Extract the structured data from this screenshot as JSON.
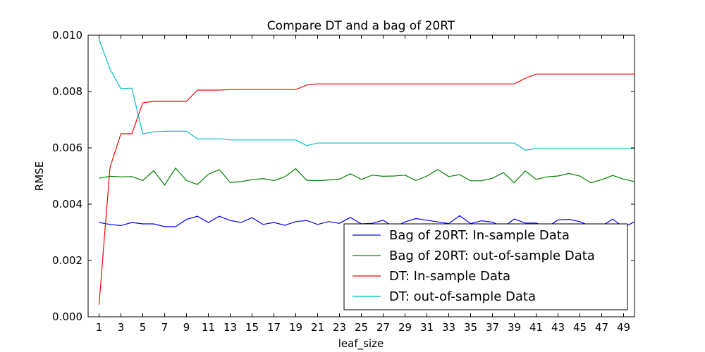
{
  "chart_data": {
    "type": "line",
    "title": "Compare DT and a bag of 20RT",
    "xlabel": "leaf_size",
    "ylabel": "RMSE",
    "xlim": [
      0,
      50
    ],
    "ylim": [
      0.0,
      0.01
    ],
    "x_ticks": [
      1,
      3,
      5,
      7,
      9,
      11,
      13,
      15,
      17,
      19,
      21,
      23,
      25,
      27,
      29,
      31,
      33,
      35,
      37,
      39,
      41,
      43,
      45,
      47,
      49
    ],
    "y_ticks": [
      "0.000",
      "0.002",
      "0.004",
      "0.006",
      "0.008",
      "0.010"
    ],
    "grid": false,
    "legend_position": "lower-right",
    "x": [
      1,
      2,
      3,
      4,
      5,
      6,
      7,
      8,
      9,
      10,
      11,
      12,
      13,
      14,
      15,
      16,
      17,
      18,
      19,
      20,
      21,
      22,
      23,
      24,
      25,
      26,
      27,
      28,
      29,
      30,
      31,
      32,
      33,
      34,
      35,
      36,
      37,
      38,
      39,
      40,
      41,
      42,
      43,
      44,
      45,
      46,
      47,
      48,
      49,
      50
    ],
    "series": [
      {
        "name": "Bag of 20RT: In-sample Data",
        "color": "#0000ff",
        "values": [
          0.00335,
          0.00328,
          0.00324,
          0.00335,
          0.0033,
          0.0033,
          0.0032,
          0.0032,
          0.00346,
          0.00357,
          0.00335,
          0.00357,
          0.00342,
          0.00335,
          0.00352,
          0.00328,
          0.00335,
          0.00325,
          0.00338,
          0.00342,
          0.00328,
          0.00338,
          0.00332,
          0.00353,
          0.0033,
          0.00332,
          0.00343,
          0.00318,
          0.00337,
          0.00349,
          0.00343,
          0.00337,
          0.00331,
          0.00359,
          0.00331,
          0.00341,
          0.00336,
          0.00319,
          0.00347,
          0.00333,
          0.00333,
          0.00318,
          0.00344,
          0.00346,
          0.00338,
          0.00321,
          0.00322,
          0.00347,
          0.00318,
          0.00337
        ]
      },
      {
        "name": "Bag of 20RT: out-of-sample Data",
        "color": "#008000",
        "values": [
          0.00492,
          0.00499,
          0.00497,
          0.00498,
          0.00484,
          0.00519,
          0.00468,
          0.00528,
          0.00484,
          0.0047,
          0.00506,
          0.00523,
          0.00477,
          0.0048,
          0.00487,
          0.00491,
          0.00484,
          0.00497,
          0.00526,
          0.00485,
          0.00483,
          0.00486,
          0.00489,
          0.00508,
          0.00488,
          0.00503,
          0.00499,
          0.005,
          0.00503,
          0.00484,
          0.005,
          0.00523,
          0.00498,
          0.00505,
          0.00483,
          0.00483,
          0.00492,
          0.00512,
          0.00476,
          0.00518,
          0.00488,
          0.00497,
          0.005,
          0.00509,
          0.005,
          0.00476,
          0.00487,
          0.00502,
          0.00489,
          0.0048
        ]
      },
      {
        "name": "DT: In-sample Data",
        "color": "#ff0000",
        "values": [
          0.00043,
          0.0053,
          0.0065,
          0.0065,
          0.0076,
          0.00765,
          0.00765,
          0.00765,
          0.00765,
          0.00805,
          0.00805,
          0.00805,
          0.00807,
          0.00807,
          0.00807,
          0.00807,
          0.00807,
          0.00807,
          0.00807,
          0.00823,
          0.00827,
          0.00827,
          0.00827,
          0.00827,
          0.00827,
          0.00827,
          0.00827,
          0.00827,
          0.00827,
          0.00827,
          0.00827,
          0.00827,
          0.00827,
          0.00827,
          0.00827,
          0.00827,
          0.00827,
          0.00827,
          0.00827,
          0.00847,
          0.00862,
          0.00862,
          0.00862,
          0.00862,
          0.00862,
          0.00862,
          0.00862,
          0.00862,
          0.00862,
          0.00862
        ]
      },
      {
        "name": "DT: out-of-sample Data",
        "color": "#00bfbf",
        "values": [
          0.00985,
          0.0088,
          0.0081,
          0.00812,
          0.0065,
          0.00657,
          0.00659,
          0.00659,
          0.00659,
          0.00632,
          0.00632,
          0.00632,
          0.00628,
          0.00628,
          0.00628,
          0.00628,
          0.00628,
          0.00628,
          0.00628,
          0.00608,
          0.00617,
          0.00617,
          0.00617,
          0.00617,
          0.00617,
          0.00617,
          0.00617,
          0.00617,
          0.00617,
          0.00617,
          0.00617,
          0.00617,
          0.00617,
          0.00617,
          0.00617,
          0.00617,
          0.00617,
          0.00617,
          0.00617,
          0.00592,
          0.00597,
          0.00597,
          0.00597,
          0.00597,
          0.00597,
          0.00597,
          0.00597,
          0.00597,
          0.00597,
          0.00597
        ]
      }
    ]
  }
}
